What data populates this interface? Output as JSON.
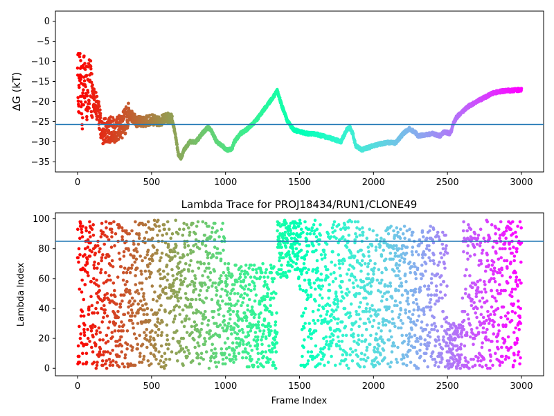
{
  "chart_data": [
    {
      "type": "scatter",
      "title": "",
      "xlabel": "",
      "ylabel": "ΔG (kT)",
      "xlim": [
        -150,
        3150
      ],
      "ylim": [
        -37.5,
        2.5
      ],
      "xticks": [
        0,
        500,
        1000,
        1500,
        2000,
        2500,
        3000
      ],
      "yticks": [
        0,
        -5,
        -10,
        -15,
        -20,
        -25,
        -30,
        -35
      ],
      "colormap": "rainbow",
      "color_by": "x",
      "hline": -25.7,
      "hline_color": "#1f77b4",
      "grid": false,
      "x_range": [
        0,
        3000
      ],
      "n_points": 3000,
      "series_profile": [
        [
          0,
          -10
        ],
        [
          10,
          -18
        ],
        [
          20,
          -12
        ],
        [
          30,
          -22
        ],
        [
          40,
          -16
        ],
        [
          50,
          -14
        ],
        [
          60,
          -18
        ],
        [
          70,
          -17
        ],
        [
          80,
          -16
        ],
        [
          90,
          -17
        ],
        [
          100,
          -18
        ],
        [
          120,
          -20
        ],
        [
          150,
          -24
        ],
        [
          160,
          -28
        ],
        [
          180,
          -27
        ],
        [
          200,
          -28
        ],
        [
          220,
          -27
        ],
        [
          260,
          -27
        ],
        [
          300,
          -26
        ],
        [
          320,
          -25
        ],
        [
          350,
          -23
        ],
        [
          400,
          -25
        ],
        [
          450,
          -25
        ],
        [
          500,
          -24.5
        ],
        [
          550,
          -25
        ],
        [
          600,
          -24
        ],
        [
          640,
          -24.5
        ],
        [
          660,
          -28
        ],
        [
          680,
          -33
        ],
        [
          700,
          -34
        ],
        [
          720,
          -32
        ],
        [
          760,
          -30
        ],
        [
          800,
          -30
        ],
        [
          840,
          -28
        ],
        [
          880,
          -26.5
        ],
        [
          900,
          -27
        ],
        [
          940,
          -30
        ],
        [
          980,
          -31
        ],
        [
          1000,
          -32
        ],
        [
          1040,
          -32
        ],
        [
          1060,
          -30
        ],
        [
          1100,
          -28
        ],
        [
          1140,
          -27
        ],
        [
          1200,
          -25
        ],
        [
          1260,
          -22
        ],
        [
          1320,
          -19
        ],
        [
          1350,
          -17.3
        ],
        [
          1380,
          -21
        ],
        [
          1420,
          -25
        ],
        [
          1460,
          -27
        ],
        [
          1500,
          -27.5
        ],
        [
          1560,
          -28
        ],
        [
          1600,
          -28
        ],
        [
          1700,
          -29
        ],
        [
          1780,
          -30
        ],
        [
          1820,
          -27
        ],
        [
          1840,
          -26.5
        ],
        [
          1860,
          -28
        ],
        [
          1880,
          -31
        ],
        [
          1920,
          -32
        ],
        [
          1960,
          -31.5
        ],
        [
          2000,
          -31
        ],
        [
          2050,
          -30.5
        ],
        [
          2100,
          -30.2
        ],
        [
          2150,
          -30.3
        ],
        [
          2200,
          -28
        ],
        [
          2240,
          -26.8
        ],
        [
          2280,
          -27.5
        ],
        [
          2300,
          -28.5
        ],
        [
          2400,
          -28
        ],
        [
          2450,
          -28.5
        ],
        [
          2480,
          -27.5
        ],
        [
          2520,
          -28
        ],
        [
          2540,
          -25.5
        ],
        [
          2560,
          -24
        ],
        [
          2600,
          -22.5
        ],
        [
          2650,
          -21
        ],
        [
          2700,
          -20
        ],
        [
          2750,
          -19
        ],
        [
          2800,
          -18
        ],
        [
          2850,
          -17.5
        ],
        [
          2900,
          -17.3
        ],
        [
          2950,
          -17.2
        ],
        [
          3000,
          -17
        ]
      ]
    },
    {
      "type": "scatter",
      "title": "Lambda Trace for PROJ18434/RUN1/CLONE49",
      "xlabel": "Frame Index",
      "ylabel": "Lambda Index",
      "xlim": [
        -150,
        3150
      ],
      "ylim": [
        -5,
        104
      ],
      "xticks": [
        0,
        500,
        1000,
        1500,
        2000,
        2500,
        3000
      ],
      "yticks": [
        0,
        20,
        40,
        60,
        80,
        100
      ],
      "colormap": "rainbow",
      "color_by": "x",
      "hline": 85,
      "hline_color": "#1f77b4",
      "grid": false,
      "x_range": [
        0,
        3000
      ],
      "y_range": [
        0,
        99
      ],
      "n_points": 3000,
      "distribution_segments": [
        {
          "x_range": [
            0,
            1000
          ],
          "y_range": [
            0,
            99
          ]
        },
        {
          "x_range": [
            1000,
            1350
          ],
          "y_range": [
            0,
            70
          ]
        },
        {
          "x_range": [
            1350,
            1500
          ],
          "y_range": [
            60,
            99
          ]
        },
        {
          "x_range": [
            1500,
            1900
          ],
          "y_range": [
            0,
            99
          ]
        },
        {
          "x_range": [
            1900,
            2500
          ],
          "y_range": [
            0,
            95
          ]
        },
        {
          "x_range": [
            2500,
            2600
          ],
          "y_range": [
            0,
            30
          ]
        },
        {
          "x_range": [
            2600,
            3000
          ],
          "y_range": [
            0,
            99
          ]
        }
      ]
    }
  ]
}
